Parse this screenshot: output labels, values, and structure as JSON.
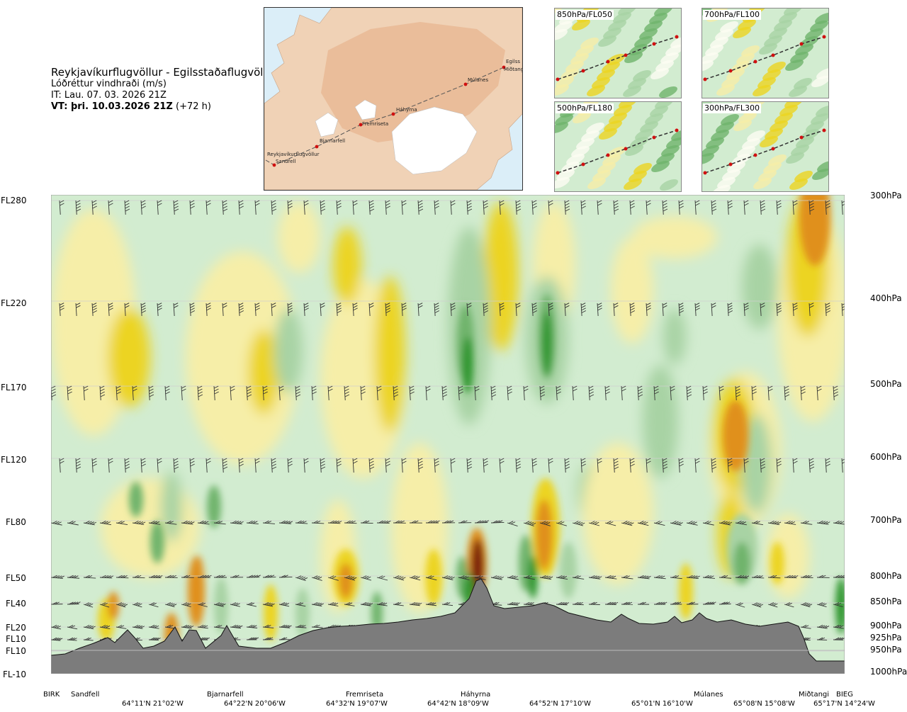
{
  "header": {
    "title": "Reykjavíkurflugvöllur - Egilsstaðaflugvöllur",
    "subtitle": "Lóðréttur vindhraði (m/s)",
    "it_line": "IT: Lau. 07. 03. 2026 21Z",
    "vt_bold": "VT: þri. 10.03.2026 21Z",
    "vt_offset": "(+72 h)"
  },
  "map": {
    "places": [
      "Reykjavíkurflugvöllur",
      "Sandfell",
      "Bjarnarfell",
      "Fremriseta",
      "Háhyrna",
      "Múlanes",
      "Egilss",
      "Miðtangi"
    ]
  },
  "thumbnails": [
    {
      "label": "850hPa/FL050"
    },
    {
      "label": "700hPa/FL100"
    },
    {
      "label": "500hPa/FL180"
    },
    {
      "label": "300hPa/FL300"
    }
  ],
  "left_levels": [
    "FL280",
    "FL220",
    "FL170",
    "FL120",
    "FL80",
    "FL50",
    "FL40",
    "FL20",
    "FL10",
    "FL10",
    "FL-10"
  ],
  "right_levels": [
    "300hPa",
    "400hPa",
    "500hPa",
    "600hPa",
    "700hPa",
    "800hPa",
    "850hPa",
    "900hPa",
    "925hPa",
    "950hPa",
    "1000hPa"
  ],
  "stations": [
    "BIRK",
    "Sandfell",
    "Bjarnarfell",
    "Fremriseta",
    "Háhyrna",
    "Múlanes",
    "Miðtangi",
    "BIEG"
  ],
  "coords": [
    "64°11'N 21°02'W",
    "64°22'N 20°06'W",
    "64°32'N 19°07'W",
    "64°42'N 18°09'W",
    "64°52'N 17°10'W",
    "65°01'N 16°10'W",
    "65°08'N 15°08'W",
    "65°17'N 14°24'W"
  ],
  "colors": {
    "strong_up": "#7a1e0f",
    "orange": "#e0901a",
    "yellow": "#ecd420",
    "pale_yellow": "#f6eea8",
    "white": "#fdfdf2",
    "pale_green": "#d2ecd0",
    "mid_green": "#a8d3a4",
    "green": "#6fb46c",
    "dark_green": "#2e962e",
    "terrain": "#7c7c7c"
  },
  "chart_data": {
    "type": "heatmap",
    "title": "Lóðréttur vindhraði (m/s)",
    "x_ticks": [
      "64°11'N 21°02'W",
      "64°22'N 20°06'W",
      "64°32'N 19°07'W",
      "64°42'N 18°09'W",
      "64°52'N 17°10'W",
      "65°01'N 16°10'W",
      "65°08'N 15°08'W",
      "65°17'N 14°24'W"
    ],
    "y_ticks_left": [
      "FL280",
      "FL220",
      "FL170",
      "FL120",
      "FL80",
      "FL50",
      "FL40",
      "FL20",
      "FL10",
      "FL10",
      "FL-10"
    ],
    "y_ticks_right": [
      "300hPa",
      "400hPa",
      "500hPa",
      "600hPa",
      "700hPa",
      "800hPa",
      "850hPa",
      "900hPa",
      "925hPa",
      "950hPa",
      "1000hPa"
    ],
    "stations_on_route": [
      "BIRK",
      "Sandfell",
      "Bjarnarfell",
      "Fremriseta",
      "Háhyrna",
      "Múlanes",
      "Miðtangi",
      "BIEG"
    ],
    "wind_barb_levels": [
      "FL280",
      "FL220",
      "FL170",
      "FL120",
      "FL80",
      "FL50",
      "FL40",
      "FL20",
      "FL10"
    ]
  }
}
